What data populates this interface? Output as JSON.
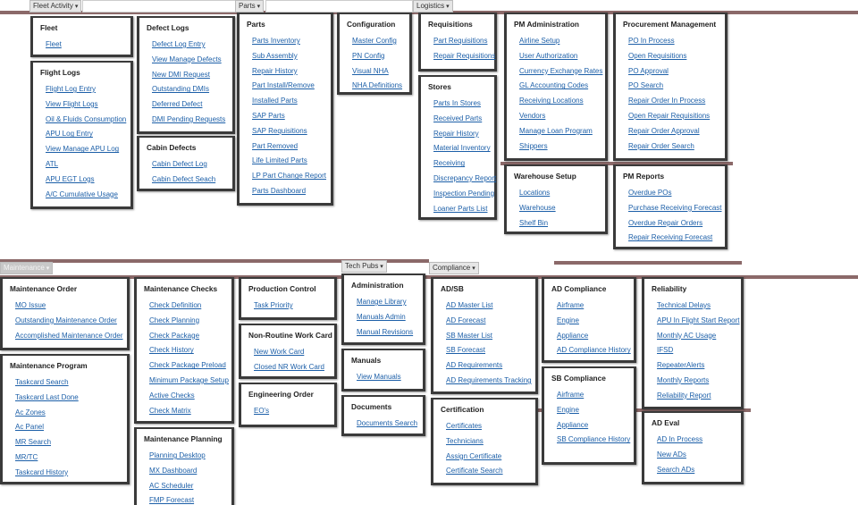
{
  "menus": [
    {
      "label": "Fleet Activity",
      "sections": [
        {
          "title": "Fleet",
          "items": [
            "Fleet"
          ]
        },
        {
          "title": "Flight Logs",
          "items": [
            "Flight Log Entry",
            "View Flight Logs",
            "Oil & Fluids Consumption",
            "APU Log Entry",
            "View Manage APU Log",
            "ATL",
            "APU EGT Logs",
            "A/C Cumulative Usage"
          ]
        },
        {
          "title": "Defect Logs",
          "items": [
            "Defect Log Entry",
            "View Manage Defects",
            "New DMI Request",
            "Outstanding DMIs",
            "Deferred Defect",
            "DMI Pending Requests"
          ]
        },
        {
          "title": "Cabin Defects",
          "items": [
            "Cabin Defect Log",
            "Cabin Defect Seach"
          ]
        }
      ]
    },
    {
      "label": "Parts",
      "sections": [
        {
          "title": "Parts",
          "items": [
            "Parts Inventory",
            "Sub Assembly",
            "Repair History",
            "Part Install/Remove",
            "Installed Parts",
            "SAP Parts",
            "SAP Requisitions",
            "Part Removed",
            "Life Limited Parts",
            "LP Part Change Report",
            "Parts Dashboard"
          ]
        },
        {
          "title": "Configuration",
          "items": [
            "Master Config",
            "PN Config",
            "Visual NHA",
            "NHA Definitions"
          ]
        }
      ]
    },
    {
      "label": "Logistics",
      "sections": [
        {
          "title": "Requisitions",
          "items": [
            "Part Requisitions",
            "Repair Requisitions"
          ]
        },
        {
          "title": "Stores",
          "items": [
            "Parts In Stores",
            "Received Parts",
            "Repair History",
            "Material Inventory",
            "Receiving",
            "Discrepancy Report",
            "Inspection Pending",
            "Loaner Parts List"
          ]
        },
        {
          "title": "PM Administration",
          "items": [
            "Airline Setup",
            "User Authorization",
            "Currency Exchange Rates",
            "GL Accounting Codes",
            "Receiving Locations",
            "Vendors",
            "Manage Loan Program",
            "Shippers"
          ]
        },
        {
          "title": "Warehouse Setup",
          "items": [
            "Locations",
            "Warehouse",
            "Shelf Bin"
          ]
        },
        {
          "title": "Procurement Management",
          "items": [
            "PO In Process",
            "Open Requisitions",
            "PO Approval",
            "PO Search",
            "Repair Order In Process",
            "Open Repair Requisitions",
            "Repair Order Approval",
            "Repair Order Search"
          ]
        },
        {
          "title": "PM Reports",
          "items": [
            "Overdue POs",
            "Purchase Receiving Forecast",
            "Overdue Repair Orders",
            "Repair Receiving Forecast"
          ]
        }
      ]
    },
    {
      "label": "Maintenance",
      "sections": [
        {
          "title": "Maintenance Order",
          "items": [
            "MO Issue",
            "Outstanding Maintenance Order",
            "Accomplished Maintenance Order"
          ]
        },
        {
          "title": "Maintenance Program",
          "items": [
            "Taskcard Search",
            "Taskcard Last Done",
            "Ac Zones",
            "Ac Panel",
            "MR Search",
            "MR/TC",
            "Taskcard History"
          ]
        },
        {
          "title": "Maintenance Checks",
          "items": [
            "Check Definition",
            "Check Planning",
            "Check Package",
            "Check History",
            "Check Package Preload",
            "Minimum Package Setup",
            "Active Checks",
            "Check Matrix"
          ]
        },
        {
          "title": "Maintenance Planning",
          "items": [
            "Planning Desktop",
            "MX Dashboard",
            "AC Scheduler",
            "FMP Forecast"
          ]
        },
        {
          "title": "Production Control",
          "items": [
            "Task Priority"
          ]
        },
        {
          "title": "Non-Routine Work Card",
          "items": [
            "New Work Card",
            "Closed NR Work Card"
          ]
        },
        {
          "title": "Engineering Order",
          "items": [
            "EO's"
          ]
        }
      ]
    },
    {
      "label": "Tech Pubs",
      "sections": [
        {
          "title": "Administration",
          "items": [
            "Manage Library",
            "Manuals Admin",
            "Manual Revisions"
          ]
        },
        {
          "title": "Manuals",
          "items": [
            "View Manuals"
          ]
        },
        {
          "title": "Documents",
          "items": [
            "Documents Search"
          ]
        }
      ]
    },
    {
      "label": "Compliance",
      "sections": [
        {
          "title": "AD/SB",
          "items": [
            "AD Master List",
            "AD Forecast",
            "SB Master List",
            "SB Forecast",
            "AD Requirements",
            "AD Requirements Tracking"
          ]
        },
        {
          "title": "Certification",
          "items": [
            "Certificates",
            "Technicians",
            "Assign Certificate",
            "Certificate Search"
          ]
        },
        {
          "title": "AD Compliance",
          "items": [
            "Airframe",
            "Engine",
            "Appliance",
            "AD Compliance History"
          ]
        },
        {
          "title": "SB Compliance",
          "items": [
            "Airframe",
            "Engine",
            "Appliance",
            "SB Compliance History"
          ]
        },
        {
          "title": "Reliability",
          "items": [
            "Technical Delays",
            "APU In Flight Start Report",
            "Monthly AC Usage",
            "IFSD",
            "RepeaterAlerts",
            "Monthly Reports",
            "Reliability Report"
          ]
        },
        {
          "title": "AD Eval",
          "items": [
            "AD In Process",
            "New ADs",
            "Search ADs"
          ]
        }
      ]
    }
  ]
}
